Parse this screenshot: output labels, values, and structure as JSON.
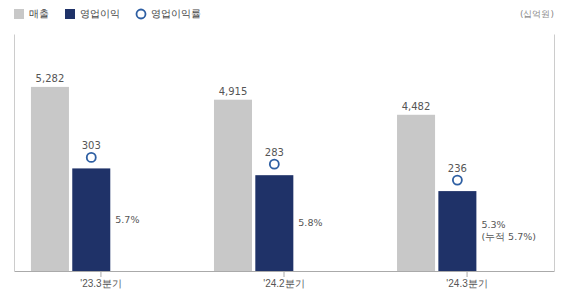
{
  "chart_data": {
    "type": "bar",
    "categories": [
      "'23.3분기",
      "'24.2분기",
      "'24.3분기"
    ],
    "series": [
      {
        "name": "매출",
        "color": "#c8c8c8",
        "values": [
          5282,
          4915,
          4482
        ],
        "value_labels": [
          "5,282",
          "4,915",
          "4,482"
        ]
      },
      {
        "name": "영업이익",
        "color": "#1f3268",
        "values": [
          303,
          283,
          236
        ],
        "axis": "y2"
      },
      {
        "name": "영업이익률",
        "type": "scatter",
        "marker": "circle",
        "color": "#2e5fa3",
        "values": [
          5.7,
          5.8,
          5.3
        ],
        "value_labels": [
          "5.7%",
          "5.8%",
          "5.3%\n(누적 5.7%)"
        ]
      }
    ],
    "ylim": [
      0,
      6800
    ],
    "y2lim": [
      0,
      700
    ],
    "data_labels": true,
    "legend": "upper left",
    "tick_labels": "x",
    "annotations": [
      "(십억원)"
    ]
  }
}
